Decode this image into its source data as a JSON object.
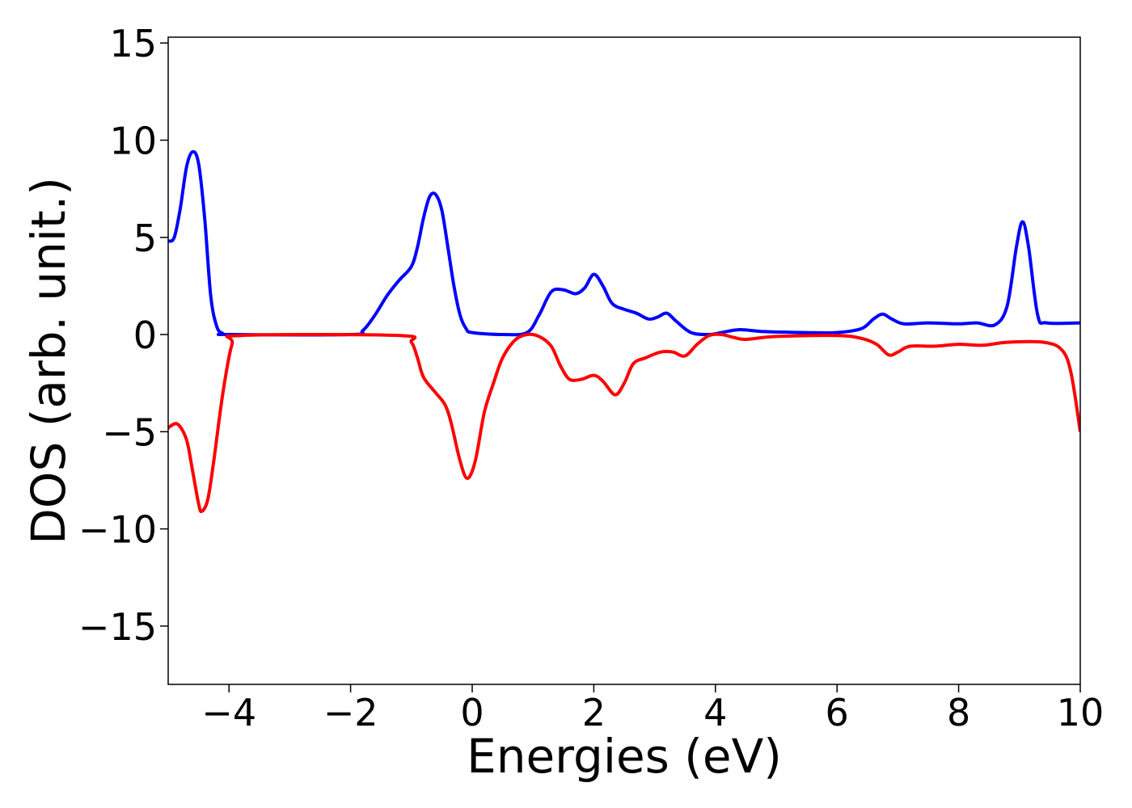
{
  "chart_data": {
    "type": "line",
    "title": "",
    "xlabel": "Energies (eV)",
    "ylabel": "DOS (arb. unit.)",
    "xlim": [
      -5,
      10
    ],
    "ylim": [
      -18,
      15.3
    ],
    "xticks": [
      -4,
      -2,
      0,
      2,
      4,
      6,
      8,
      10
    ],
    "yticks": [
      -15,
      -10,
      -5,
      0,
      5,
      10,
      15
    ],
    "xtick_labels": [
      "−4",
      "−2",
      "0",
      "2",
      "4",
      "6",
      "8",
      "10"
    ],
    "ytick_labels": [
      "−15",
      "−10",
      "−5",
      "0",
      "5",
      "10",
      "15"
    ],
    "grid": false,
    "legend": "none",
    "series": [
      {
        "color": "#0000ff",
        "points": [
          [
            -5.0,
            4.8
          ],
          [
            -4.9,
            5.0
          ],
          [
            -4.8,
            6.5
          ],
          [
            -4.7,
            8.6
          ],
          [
            -4.6,
            9.4
          ],
          [
            -4.5,
            8.8
          ],
          [
            -4.4,
            6.0
          ],
          [
            -4.3,
            2.0
          ],
          [
            -4.2,
            0.4
          ],
          [
            -4.1,
            0.05
          ],
          [
            -4.0,
            0.0
          ],
          [
            -2.0,
            0.0
          ],
          [
            -1.8,
            0.2
          ],
          [
            -1.6,
            1.0
          ],
          [
            -1.4,
            2.0
          ],
          [
            -1.2,
            2.8
          ],
          [
            -1.0,
            3.5
          ],
          [
            -0.9,
            4.5
          ],
          [
            -0.8,
            6.0
          ],
          [
            -0.7,
            7.1
          ],
          [
            -0.6,
            7.2
          ],
          [
            -0.5,
            6.4
          ],
          [
            -0.4,
            4.5
          ],
          [
            -0.3,
            2.5
          ],
          [
            -0.2,
            1.0
          ],
          [
            -0.1,
            0.3
          ],
          [
            0.0,
            0.1
          ],
          [
            0.5,
            0.0
          ],
          [
            0.9,
            0.1
          ],
          [
            1.1,
            1.0
          ],
          [
            1.3,
            2.2
          ],
          [
            1.5,
            2.3
          ],
          [
            1.7,
            2.1
          ],
          [
            1.85,
            2.4
          ],
          [
            2.0,
            3.1
          ],
          [
            2.15,
            2.5
          ],
          [
            2.3,
            1.6
          ],
          [
            2.5,
            1.3
          ],
          [
            2.7,
            1.1
          ],
          [
            2.9,
            0.8
          ],
          [
            3.05,
            0.9
          ],
          [
            3.2,
            1.1
          ],
          [
            3.35,
            0.7
          ],
          [
            3.6,
            0.1
          ],
          [
            3.9,
            0.0
          ],
          [
            4.1,
            0.1
          ],
          [
            4.4,
            0.25
          ],
          [
            4.8,
            0.15
          ],
          [
            5.5,
            0.1
          ],
          [
            6.0,
            0.1
          ],
          [
            6.4,
            0.3
          ],
          [
            6.6,
            0.8
          ],
          [
            6.75,
            1.05
          ],
          [
            6.9,
            0.8
          ],
          [
            7.1,
            0.55
          ],
          [
            7.5,
            0.6
          ],
          [
            8.0,
            0.55
          ],
          [
            8.3,
            0.6
          ],
          [
            8.6,
            0.5
          ],
          [
            8.8,
            1.5
          ],
          [
            8.95,
            4.5
          ],
          [
            9.05,
            5.8
          ],
          [
            9.15,
            4.5
          ],
          [
            9.3,
            1.0
          ],
          [
            9.45,
            0.6
          ],
          [
            10.0,
            0.6
          ]
        ]
      },
      {
        "color": "#ff0000",
        "points": [
          [
            -5.0,
            -4.8
          ],
          [
            -4.85,
            -4.6
          ],
          [
            -4.7,
            -5.4
          ],
          [
            -4.6,
            -7.0
          ],
          [
            -4.5,
            -8.7
          ],
          [
            -4.45,
            -9.1
          ],
          [
            -4.35,
            -8.5
          ],
          [
            -4.25,
            -6.5
          ],
          [
            -4.1,
            -3.0
          ],
          [
            -3.95,
            -0.5
          ],
          [
            -3.8,
            -0.05
          ],
          [
            -1.2,
            -0.05
          ],
          [
            -1.0,
            -0.4
          ],
          [
            -0.9,
            -1.2
          ],
          [
            -0.8,
            -2.2
          ],
          [
            -0.6,
            -3.0
          ],
          [
            -0.45,
            -3.6
          ],
          [
            -0.35,
            -4.5
          ],
          [
            -0.2,
            -6.5
          ],
          [
            -0.08,
            -7.4
          ],
          [
            0.05,
            -6.5
          ],
          [
            0.2,
            -4.0
          ],
          [
            0.35,
            -2.5
          ],
          [
            0.5,
            -1.2
          ],
          [
            0.7,
            -0.3
          ],
          [
            0.9,
            0.0
          ],
          [
            1.1,
            -0.1
          ],
          [
            1.3,
            -0.6
          ],
          [
            1.45,
            -1.6
          ],
          [
            1.6,
            -2.3
          ],
          [
            1.8,
            -2.3
          ],
          [
            2.0,
            -2.1
          ],
          [
            2.15,
            -2.4
          ],
          [
            2.35,
            -3.1
          ],
          [
            2.5,
            -2.5
          ],
          [
            2.65,
            -1.5
          ],
          [
            2.85,
            -1.2
          ],
          [
            3.1,
            -0.9
          ],
          [
            3.3,
            -0.9
          ],
          [
            3.5,
            -1.1
          ],
          [
            3.7,
            -0.5
          ],
          [
            3.9,
            -0.05
          ],
          [
            4.1,
            0.0
          ],
          [
            4.3,
            -0.15
          ],
          [
            4.5,
            -0.25
          ],
          [
            5.0,
            -0.1
          ],
          [
            6.0,
            -0.05
          ],
          [
            6.4,
            -0.2
          ],
          [
            6.65,
            -0.5
          ],
          [
            6.85,
            -1.05
          ],
          [
            7.0,
            -0.9
          ],
          [
            7.2,
            -0.6
          ],
          [
            7.6,
            -0.6
          ],
          [
            8.0,
            -0.5
          ],
          [
            8.4,
            -0.55
          ],
          [
            8.8,
            -0.4
          ],
          [
            9.4,
            -0.4
          ],
          [
            9.7,
            -0.8
          ],
          [
            9.85,
            -2.0
          ],
          [
            10.0,
            -5.0
          ]
        ]
      }
    ]
  }
}
